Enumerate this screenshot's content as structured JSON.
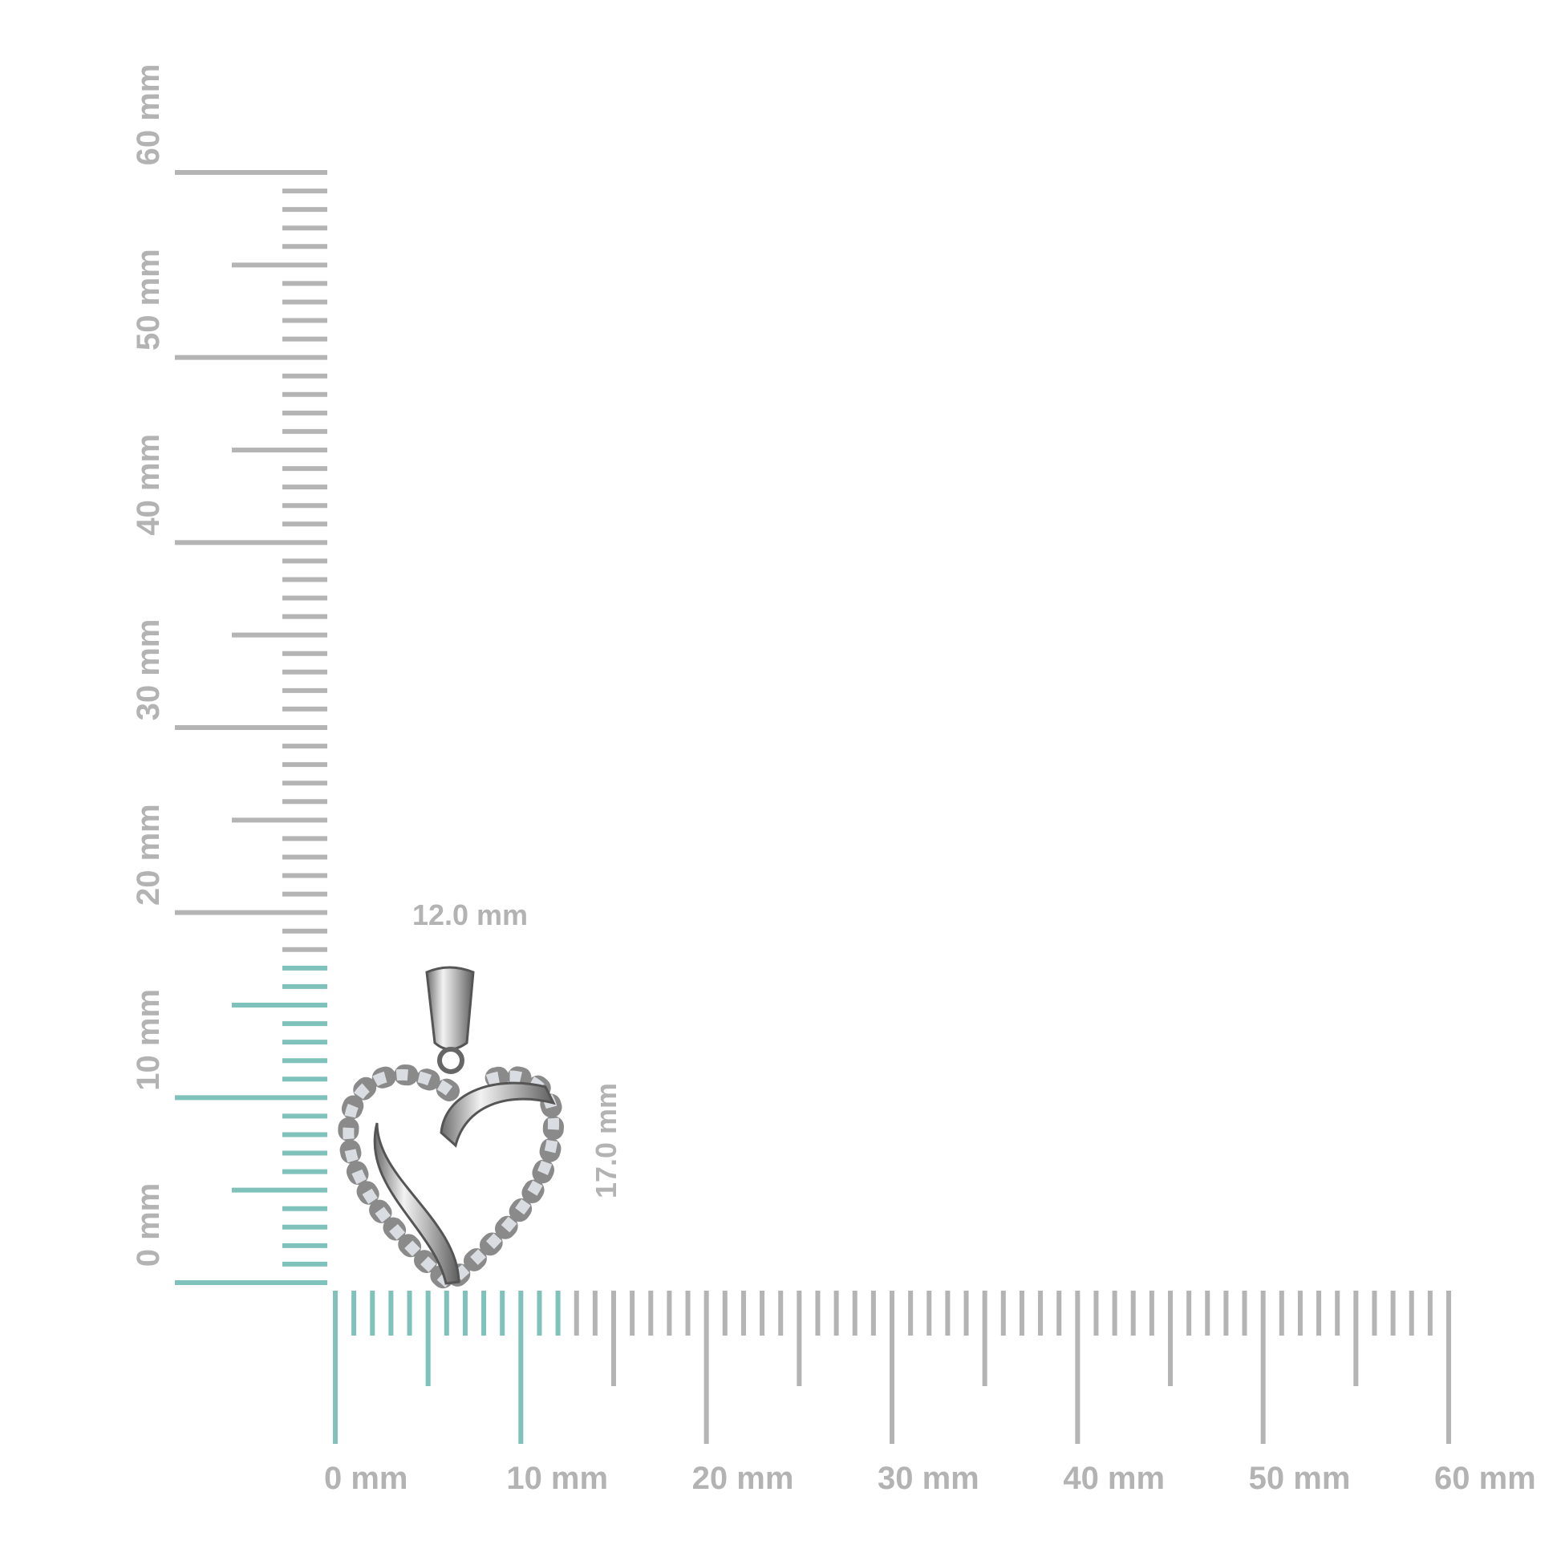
{
  "colors": {
    "ruler_gray": "#b4b4b4",
    "highlight_teal": "#7fc1bb",
    "label_gray": "#b3b3b3"
  },
  "vertical_ruler": {
    "range_mm": [
      0,
      60
    ],
    "highlight_mm": 17,
    "labels": [
      "0 mm",
      "10 mm",
      "20 mm",
      "30 mm",
      "40 mm",
      "50 mm",
      "60 mm"
    ]
  },
  "horizontal_ruler": {
    "range_mm": [
      0,
      60
    ],
    "highlight_mm": 12,
    "labels": [
      "0 mm",
      "10 mm",
      "20 mm",
      "30 mm",
      "40 mm",
      "50 mm",
      "60 mm"
    ]
  },
  "dimensions": {
    "width": "12.0 mm",
    "height": "17.0 mm"
  },
  "product": {
    "description_icon": "heart-pendant-image"
  }
}
